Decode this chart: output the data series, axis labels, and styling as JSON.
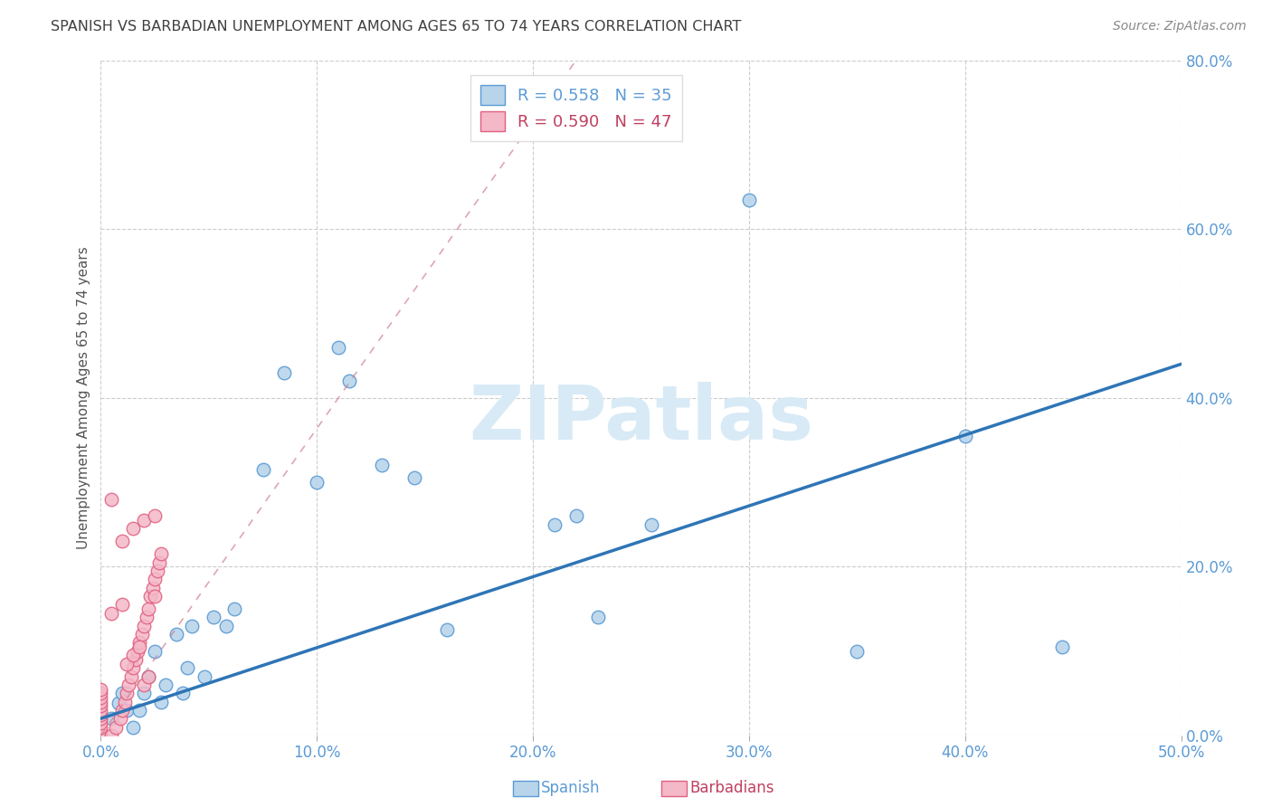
{
  "title": "SPANISH VS BARBADIAN UNEMPLOYMENT AMONG AGES 65 TO 74 YEARS CORRELATION CHART",
  "source": "Source: ZipAtlas.com",
  "ylabel": "Unemployment Among Ages 65 to 74 years",
  "xlim": [
    0.0,
    0.5
  ],
  "ylim": [
    0.0,
    0.8
  ],
  "xtick_vals": [
    0.0,
    0.1,
    0.2,
    0.3,
    0.4,
    0.5
  ],
  "ytick_vals": [
    0.0,
    0.2,
    0.4,
    0.6,
    0.8
  ],
  "xtick_labels": [
    "0.0%",
    "10.0%",
    "20.0%",
    "30.0%",
    "40.0%",
    "50.0%"
  ],
  "ytick_labels": [
    "0.0%",
    "20.0%",
    "40.0%",
    "60.0%",
    "80.0%"
  ],
  "spanish_color": "#b8d4ea",
  "spanish_edge_color": "#5b9bd5",
  "barbadian_color": "#f4b8c8",
  "barbadian_edge_color": "#e06080",
  "trend_spanish_color": "#2e75b6",
  "trend_barbadian_color": "#e8b0be",
  "trend_barbadian_line_color": "#d08090",
  "legend_R_spanish": "R = 0.558",
  "legend_N_spanish": "N = 35",
  "legend_R_barbadian": "R = 0.590",
  "legend_N_barbadian": "N = 47",
  "spanish_x": [
    0.005,
    0.008,
    0.01,
    0.012,
    0.015,
    0.018,
    0.02,
    0.022,
    0.025,
    0.028,
    0.03,
    0.035,
    0.038,
    0.04,
    0.042,
    0.048,
    0.052,
    0.058,
    0.062,
    0.075,
    0.085,
    0.1,
    0.11,
    0.115,
    0.13,
    0.145,
    0.16,
    0.21,
    0.22,
    0.23,
    0.255,
    0.3,
    0.35,
    0.4,
    0.445
  ],
  "spanish_y": [
    0.02,
    0.038,
    0.05,
    0.03,
    0.01,
    0.03,
    0.05,
    0.07,
    0.1,
    0.04,
    0.06,
    0.12,
    0.05,
    0.08,
    0.13,
    0.07,
    0.14,
    0.13,
    0.15,
    0.315,
    0.43,
    0.3,
    0.46,
    0.42,
    0.32,
    0.305,
    0.125,
    0.25,
    0.26,
    0.14,
    0.25,
    0.635,
    0.1,
    0.355,
    0.105
  ],
  "barbadian_x": [
    0.0,
    0.0,
    0.0,
    0.0,
    0.0,
    0.0,
    0.0,
    0.0,
    0.0,
    0.0,
    0.0,
    0.0,
    0.005,
    0.007,
    0.009,
    0.01,
    0.011,
    0.012,
    0.013,
    0.014,
    0.015,
    0.016,
    0.017,
    0.018,
    0.019,
    0.02,
    0.021,
    0.022,
    0.023,
    0.024,
    0.025,
    0.026,
    0.027,
    0.028,
    0.005,
    0.01,
    0.012,
    0.015,
    0.018,
    0.02,
    0.022,
    0.025,
    0.01,
    0.015,
    0.02,
    0.025,
    0.005
  ],
  "barbadian_y": [
    0.0,
    0.005,
    0.01,
    0.015,
    0.02,
    0.025,
    0.03,
    0.035,
    0.04,
    0.045,
    0.05,
    0.055,
    0.0,
    0.01,
    0.02,
    0.03,
    0.04,
    0.05,
    0.06,
    0.07,
    0.08,
    0.09,
    0.1,
    0.11,
    0.12,
    0.13,
    0.14,
    0.15,
    0.165,
    0.175,
    0.185,
    0.195,
    0.205,
    0.215,
    0.145,
    0.155,
    0.085,
    0.095,
    0.105,
    0.06,
    0.07,
    0.165,
    0.23,
    0.245,
    0.255,
    0.26,
    0.28
  ],
  "trend_spanish_x0": 0.0,
  "trend_spanish_y0": 0.02,
  "trend_spanish_x1": 0.5,
  "trend_spanish_y1": 0.44,
  "trend_barbadian_x0": 0.0,
  "trend_barbadian_y0": 0.0,
  "trend_barbadian_x1": 0.22,
  "trend_barbadian_y1": 0.8,
  "watermark_text": "ZIPatlas",
  "watermark_color": "#d8eaf6",
  "background_color": "#ffffff",
  "grid_color": "#cccccc",
  "tick_color": "#5b9bd5",
  "title_color": "#404040",
  "source_color": "#888888",
  "ylabel_color": "#555555"
}
